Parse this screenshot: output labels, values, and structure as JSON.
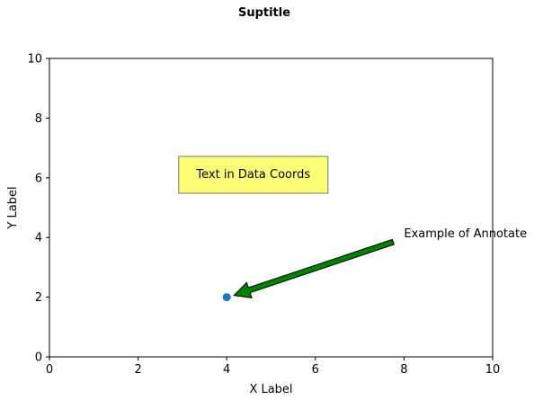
{
  "chart_data": {
    "type": "scatter",
    "title": "Suptitle",
    "xlabel": "X Label",
    "ylabel": "Y Label",
    "xlim": [
      0,
      10
    ],
    "ylim": [
      0,
      10
    ],
    "xticks": [
      0,
      2,
      4,
      6,
      8,
      10
    ],
    "yticks": [
      0,
      2,
      4,
      6,
      8,
      10
    ],
    "grid": false,
    "points": [
      {
        "x": 4,
        "y": 2,
        "color": "#1f77b4"
      }
    ],
    "text_box": {
      "text": "Text in Data Coords",
      "x": 4.6,
      "y": 6.1,
      "facecolor": "#ffff77",
      "edgecolor": "#777777"
    },
    "annotation": {
      "text": "Example of Annotate",
      "xy": [
        4,
        2
      ],
      "xytext": [
        8,
        4
      ],
      "arrow_color": "#008000"
    }
  }
}
